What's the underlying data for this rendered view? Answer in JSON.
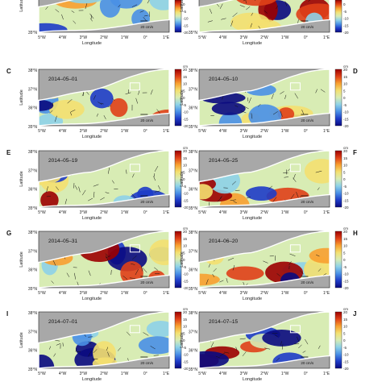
{
  "figure": {
    "panels": [
      {
        "letter": "",
        "date": ""
      },
      {
        "letter": "",
        "date": ""
      },
      {
        "letter": "C",
        "date": "2014–05–01"
      },
      {
        "letter": "D",
        "date": "2014–05–10"
      },
      {
        "letter": "E",
        "date": "2014–05–19"
      },
      {
        "letter": "F",
        "date": "2014–05–25"
      },
      {
        "letter": "G",
        "date": "2014–05–31"
      },
      {
        "letter": "H",
        "date": "2014–06–20"
      },
      {
        "letter": "I",
        "date": "2014–07–01"
      },
      {
        "letter": "J",
        "date": "2014–07–15"
      }
    ],
    "lat_ticks": [
      "38°N",
      "37°N",
      "36°N",
      "35°N"
    ],
    "lon_ticks": [
      "5°W",
      "4°W",
      "3°W",
      "2°W",
      "1°W",
      "0°",
      "1°E"
    ],
    "lat_label": "Latitude",
    "lon_label": "Longitude",
    "cb_ticks": [
      "20",
      "15",
      "10",
      "5",
      "0",
      "-5",
      "-10",
      "-15",
      "-20"
    ],
    "cb_unit": "cm",
    "scale_label": "20 cm/s",
    "colors": {
      "land": "#a8a8a8",
      "ocean_high": "#b40000",
      "ocean_low": "#10208a",
      "coast": "#ffffff"
    },
    "colormap": [
      "#0a0a80",
      "#1e3cc8",
      "#4a90e6",
      "#8ed2e8",
      "#d8ecb4",
      "#f4e070",
      "#f8a030",
      "#e04018",
      "#9c0000"
    ]
  }
}
